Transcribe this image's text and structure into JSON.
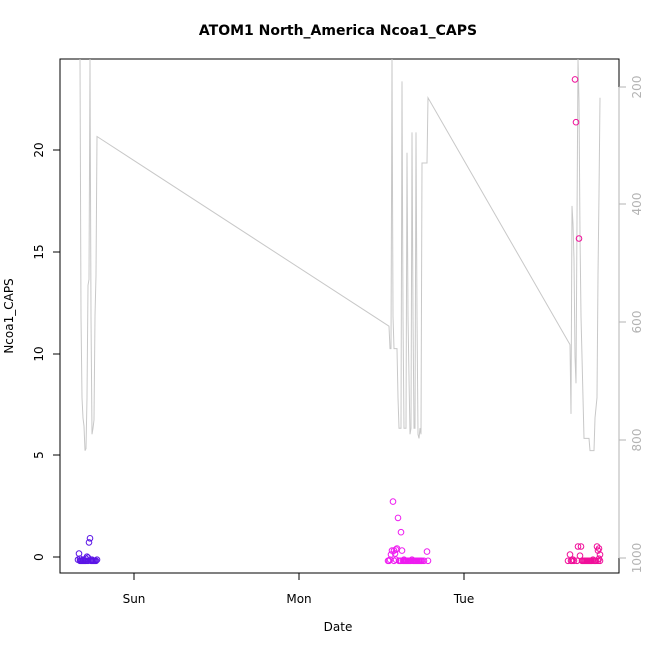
{
  "chart_data": {
    "type": "scatter",
    "title": "ATOM1 North_America Ncoa1_CAPS",
    "xlabel": "Date",
    "ylabel": "Ncoa1_CAPS",
    "x_ticks": [
      "Sun",
      "Mon",
      "Tue"
    ],
    "y_ticks": [
      "0",
      "5",
      "10",
      "15",
      "20"
    ],
    "y_right_ticks": [
      "200",
      "400",
      "600",
      "800",
      "1000"
    ],
    "ylim": [
      -0.6,
      24.6
    ],
    "y_right_lim": [
      1010,
      165
    ],
    "y_right_reversed": true,
    "grid": false,
    "legend": "none",
    "colors": {
      "line": "#c8c8c8",
      "day1_points": "#5b15e6",
      "day2_points": "#ee1cf0",
      "day3_points": "#f0109a",
      "secondary_axis": "#b3b3b3"
    },
    "series": [
      {
        "color": "#5b15e6",
        "points": [
          [
            78,
            0.05
          ],
          [
            79,
            0.35
          ],
          [
            80,
            0.1
          ],
          [
            81,
            0.0
          ],
          [
            82,
            0.0
          ],
          [
            83,
            0.05
          ],
          [
            84,
            0.0
          ],
          [
            85,
            0.0
          ],
          [
            86,
            0.1
          ],
          [
            87,
            0.2
          ],
          [
            88,
            0.0
          ],
          [
            89,
            0.9
          ],
          [
            90,
            1.1
          ],
          [
            91,
            0.0
          ],
          [
            92,
            0.05
          ],
          [
            93,
            0.0
          ],
          [
            94,
            0.0
          ],
          [
            96,
            0.0
          ],
          [
            97,
            0.05
          ],
          [
            80,
            0.0
          ],
          [
            83,
            0.0
          ],
          [
            86,
            0.0
          ],
          [
            88,
            0.15
          ],
          [
            92,
            0.0
          ],
          [
            95,
            0.0
          ]
        ]
      },
      {
        "color": "#ee1cf0",
        "points": [
          [
            388,
            0.0
          ],
          [
            390,
            0.05
          ],
          [
            391,
            0.3
          ],
          [
            392,
            0.5
          ],
          [
            393,
            2.9
          ],
          [
            394,
            0.5
          ],
          [
            395,
            0.35
          ],
          [
            396,
            0.55
          ],
          [
            397,
            0.6
          ],
          [
            398,
            2.1
          ],
          [
            399,
            0.0
          ],
          [
            400,
            0.0
          ],
          [
            401,
            1.4
          ],
          [
            402,
            0.5
          ],
          [
            403,
            0.0
          ],
          [
            404,
            0.05
          ],
          [
            405,
            0.0
          ],
          [
            406,
            0.0
          ],
          [
            407,
            0.0
          ],
          [
            408,
            0.0
          ],
          [
            409,
            0.0
          ],
          [
            410,
            0.0
          ],
          [
            411,
            0.0
          ],
          [
            412,
            0.05
          ],
          [
            413,
            0.0
          ],
          [
            414,
            0.0
          ],
          [
            415,
            0.0
          ],
          [
            416,
            0.0
          ],
          [
            417,
            0.0
          ],
          [
            418,
            0.0
          ],
          [
            419,
            0.0
          ],
          [
            420,
            0.0
          ],
          [
            421,
            0.0
          ],
          [
            422,
            0.0
          ],
          [
            424,
            0.0
          ],
          [
            427,
            0.45
          ],
          [
            428,
            0.0
          ],
          [
            389,
            0.0
          ],
          [
            394,
            0.0
          ],
          [
            396,
            0.05
          ],
          [
            401,
            0.0
          ],
          [
            404,
            0.0
          ]
        ]
      },
      {
        "color": "#f0109a",
        "points": [
          [
            568,
            0.0
          ],
          [
            570,
            0.3
          ],
          [
            571,
            0.0
          ],
          [
            572,
            0.0
          ],
          [
            573,
            0.05
          ],
          [
            574,
            0.0
          ],
          [
            575,
            23.6
          ],
          [
            576,
            21.5
          ],
          [
            577,
            0.0
          ],
          [
            578,
            0.7
          ],
          [
            579,
            15.8
          ],
          [
            580,
            0.25
          ],
          [
            581,
            0.7
          ],
          [
            582,
            0.0
          ],
          [
            583,
            0.0
          ],
          [
            584,
            0.0
          ],
          [
            585,
            0.0
          ],
          [
            586,
            0.0
          ],
          [
            587,
            0.0
          ],
          [
            588,
            0.0
          ],
          [
            589,
            0.0
          ],
          [
            590,
            0.0
          ],
          [
            591,
            0.0
          ],
          [
            592,
            0.0
          ],
          [
            593,
            0.05
          ],
          [
            594,
            0.0
          ],
          [
            595,
            0.0
          ],
          [
            596,
            0.0
          ],
          [
            597,
            0.7
          ],
          [
            598,
            0.5
          ],
          [
            599,
            0.6
          ],
          [
            600,
            0.3
          ],
          [
            598,
            0.0
          ],
          [
            599,
            0.1
          ],
          [
            600,
            0.0
          ]
        ]
      }
    ],
    "line": [
      [
        80,
        24.6
      ],
      [
        81,
        12
      ],
      [
        82,
        8
      ],
      [
        83,
        7
      ],
      [
        84,
        6.6
      ],
      [
        85,
        5.4
      ],
      [
        86,
        5.5
      ],
      [
        87,
        8
      ],
      [
        88,
        13.5
      ],
      [
        89,
        13.8
      ],
      [
        90,
        24.6
      ],
      [
        91,
        12
      ],
      [
        92,
        6.2
      ],
      [
        93,
        6.5
      ],
      [
        94,
        6.9
      ],
      [
        95,
        12
      ],
      [
        96,
        14
      ],
      [
        97,
        20.8
      ],
      [
        389,
        11.5
      ],
      [
        390,
        10.4
      ],
      [
        391,
        10.4
      ],
      [
        392,
        24.6
      ],
      [
        393,
        12
      ],
      [
        394,
        10.4
      ],
      [
        395,
        10.4
      ],
      [
        396,
        10.4
      ],
      [
        397,
        10.4
      ],
      [
        398,
        8
      ],
      [
        399,
        6.5
      ],
      [
        400,
        6.5
      ],
      [
        401,
        6.5
      ],
      [
        402,
        23.5
      ],
      [
        403,
        12
      ],
      [
        404,
        6.5
      ],
      [
        405,
        6.5
      ],
      [
        406,
        6.5
      ],
      [
        407,
        20
      ],
      [
        408,
        12
      ],
      [
        409,
        9
      ],
      [
        410,
        6.2
      ],
      [
        411,
        6.5
      ],
      [
        412,
        21
      ],
      [
        413,
        12
      ],
      [
        414,
        6.5
      ],
      [
        415,
        6.5
      ],
      [
        416,
        21
      ],
      [
        417,
        12
      ],
      [
        418,
        6.2
      ],
      [
        419,
        6.0
      ],
      [
        420,
        6.5
      ],
      [
        421,
        6.2
      ],
      [
        422,
        19.5
      ],
      [
        423,
        19.5
      ],
      [
        424,
        19.5
      ],
      [
        425,
        19.5
      ],
      [
        426,
        19.5
      ],
      [
        427,
        19.5
      ],
      [
        428,
        22.7
      ],
      [
        570,
        10.6
      ],
      [
        571,
        7.2
      ],
      [
        572,
        17.4
      ],
      [
        573,
        16.5
      ],
      [
        574,
        14.8
      ],
      [
        575,
        10
      ],
      [
        576,
        8.7
      ],
      [
        577,
        16.7
      ],
      [
        578,
        24.6
      ],
      [
        579,
        22.5
      ],
      [
        580,
        16
      ],
      [
        581,
        12
      ],
      [
        582,
        10
      ],
      [
        583,
        8
      ],
      [
        584,
        6
      ],
      [
        585,
        6
      ],
      [
        586,
        6
      ],
      [
        587,
        6
      ],
      [
        588,
        6
      ],
      [
        589,
        6
      ],
      [
        590,
        5.4
      ],
      [
        591,
        5.4
      ],
      [
        592,
        5.4
      ],
      [
        593,
        5.4
      ],
      [
        594,
        5.4
      ],
      [
        595,
        7
      ],
      [
        596,
        7.5
      ],
      [
        597,
        8
      ],
      [
        598,
        14
      ],
      [
        599,
        18
      ],
      [
        600,
        22.7
      ]
    ]
  }
}
